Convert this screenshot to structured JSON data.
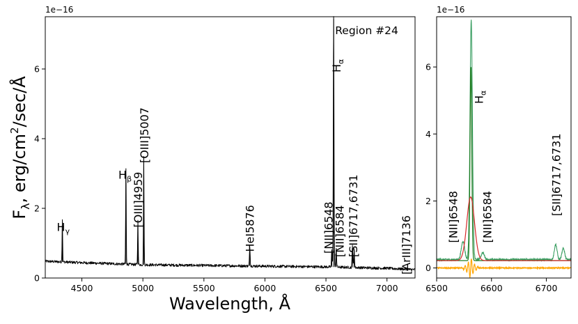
{
  "chart_data": [
    {
      "type": "line",
      "panel": "main",
      "title": "",
      "annotation": "Region #24",
      "xlabel": "Wavelength, Å",
      "ylabel": "F_λ, erg/cm²/sec/Å",
      "ylabel_parts": {
        "F": "F",
        "lambda_sub": "λ",
        "rest1": ", erg/cm",
        "sq": "2",
        "rest2": "/sec/Å"
      },
      "offset_text": "1e−16",
      "xlim": [
        4200,
        7230
      ],
      "ylim": [
        0,
        7.5
      ],
      "xticks": [
        4500,
        5000,
        5500,
        6000,
        6500,
        7000
      ],
      "xtick_labels": [
        "4500",
        "5000",
        "5500",
        "6000",
        "6500",
        "7000"
      ],
      "yticks": [
        0,
        2,
        4,
        6
      ],
      "ytick_labels": [
        "0",
        "2",
        "4",
        "6"
      ],
      "grid": false,
      "series": [
        {
          "color": "#000000",
          "continuum": [
            [
              4200,
              0.48
            ],
            [
              4500,
              0.44
            ],
            [
              5000,
              0.38
            ],
            [
              5500,
              0.36
            ],
            [
              6000,
              0.34
            ],
            [
              6500,
              0.32
            ],
            [
              7000,
              0.28
            ],
            [
              7230,
              0.24
            ]
          ],
          "noise_amplitude": 0.04,
          "lines": [
            {
              "x": 4340,
              "peak": 1.22,
              "width": 2.5
            },
            {
              "x": 4861,
              "peak": 2.75,
              "width": 2.5
            },
            {
              "x": 4959,
              "peak": 1.28,
              "width": 2.5
            },
            {
              "x": 5007,
              "peak": 3.1,
              "width": 2.5
            },
            {
              "x": 5876,
              "peak": 0.55,
              "width": 3
            },
            {
              "x": 6548,
              "peak": 0.5,
              "width": 3
            },
            {
              "x": 6563,
              "peak": 7.2,
              "width": 3
            },
            {
              "x": 6584,
              "peak": 0.55,
              "width": 3
            },
            {
              "x": 6717,
              "peak": 0.65,
              "width": 3
            },
            {
              "x": 6731,
              "peak": 0.55,
              "width": 3
            }
          ]
        }
      ],
      "labels": [
        {
          "key": "hg",
          "main": "H",
          "sub": "γ",
          "x": 4340,
          "y": 1.35,
          "rotated": false
        },
        {
          "key": "hb",
          "main": "H",
          "sub": "β",
          "x": 4845,
          "y": 2.85,
          "rotated": false
        },
        {
          "key": "oiii4959",
          "text": "[OIII]4959",
          "x": 4959,
          "y": 1.45,
          "rotated": true
        },
        {
          "key": "oiii5007",
          "text": "[OIII]5007",
          "x": 5010,
          "y": 3.3,
          "rotated": true
        },
        {
          "key": "hei5876",
          "text": "HeI5876",
          "x": 5876,
          "y": 0.75,
          "rotated": true
        },
        {
          "key": "nii6548",
          "text": "[NII]6548",
          "x": 6520,
          "y": 0.7,
          "rotated": true
        },
        {
          "key": "ha",
          "main": "H",
          "sub": "α",
          "x": 6585,
          "y": 5.9,
          "rotated": true
        },
        {
          "key": "nii6584",
          "text": "[NII]6584",
          "x": 6610,
          "y": 0.6,
          "rotated": true
        },
        {
          "key": "sii",
          "text": "[SII]6717,6731",
          "x": 6722,
          "y": 0.6,
          "rotated": true
        },
        {
          "key": "ariii",
          "text": "[ArIII]7136",
          "x": 7155,
          "y": 0.1,
          "rotated": true
        }
      ]
    },
    {
      "type": "line",
      "panel": "zoom",
      "title": "",
      "xlabel": "",
      "ylabel": "",
      "offset_text": "1e−16",
      "xlim": [
        6500,
        6745
      ],
      "ylim": [
        -0.3,
        7.5
      ],
      "xticks": [
        6500,
        6600,
        6700
      ],
      "xtick_labels": [
        "6500",
        "6600",
        "6700"
      ],
      "yticks": [
        0,
        2,
        4,
        6
      ],
      "ytick_labels": [
        "0",
        "2",
        "4",
        "6"
      ],
      "grid": false,
      "series": [
        {
          "role": "observed",
          "color": "#3a9e62",
          "baseline": 0.25,
          "lines": [
            {
              "x": 6548,
              "peak": 0.55,
              "width": 3
            },
            {
              "x": 6563,
              "peak": 7.15,
              "width": 2.2
            },
            {
              "x": 6584,
              "peak": 0.2,
              "width": 3
            },
            {
              "x": 6717,
              "peak": 0.45,
              "width": 2.5
            },
            {
              "x": 6731,
              "peak": 0.33,
              "width": 2.5
            }
          ]
        },
        {
          "role": "narrow",
          "color": "#1e7b1e",
          "baseline": 0.0,
          "lines": [
            {
              "x": 6562.5,
              "peak": 5.8,
              "width": 1.6
            }
          ]
        },
        {
          "role": "broad",
          "color": "#d62728",
          "baseline": 0.0,
          "lines": [
            {
              "x": 6562,
              "peak": 1.9,
              "width": 7
            }
          ]
        },
        {
          "role": "residual",
          "color": "#ffa500",
          "baseline": 0.0,
          "lines": []
        }
      ],
      "labels": [
        {
          "key": "nii6548",
          "text": "[NII]6548",
          "x": 6530,
          "y": 0.75,
          "rotated": true
        },
        {
          "key": "ha",
          "main": "H",
          "sub": "α",
          "x": 6577,
          "y": 4.9,
          "rotated": true
        },
        {
          "key": "nii6584",
          "text": "[NII]6584",
          "x": 6592,
          "y": 0.75,
          "rotated": true
        },
        {
          "key": "sii",
          "text": "[SII]6717,6731",
          "x": 6718,
          "y": 1.55,
          "rotated": true
        }
      ]
    }
  ]
}
